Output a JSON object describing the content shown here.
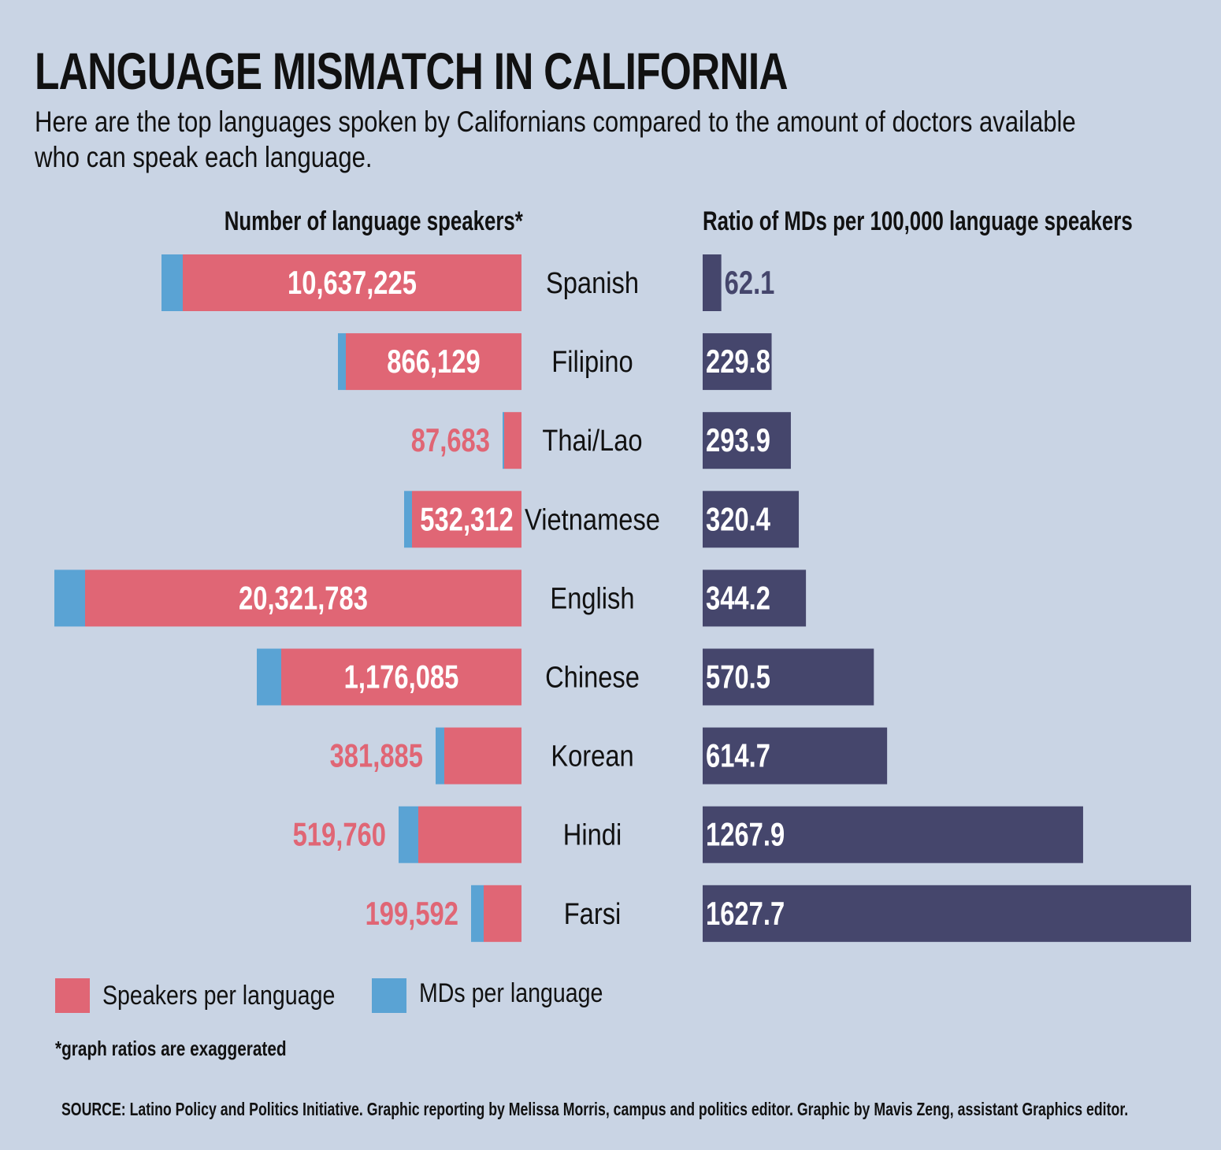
{
  "title": "LANGUAGE MISMATCH IN CALIFORNIA",
  "subtitle": "Here are the top languages spoken by Californians compared to the amount of doctors available who can speak each language.",
  "colors": {
    "background": "#c9d4e4",
    "speakers": "#e06675",
    "mds": "#5aa3d4",
    "ratio": "#45466c",
    "text": "#111111"
  },
  "chart_data": {
    "type": "bar",
    "left_title": "Number of language speakers*",
    "right_title": "Ratio of MDs per 100,000 language speakers",
    "categories": [
      "Spanish",
      "Filipino",
      "Thai/Lao",
      "Vietnamese",
      "English",
      "Chinese",
      "Korean",
      "Hindi",
      "Farsi"
    ],
    "series": [
      {
        "name": "Speakers per language",
        "values": [
          10637225,
          866129,
          87683,
          532312,
          20321783,
          1176085,
          381885,
          519760,
          199592
        ],
        "labels": [
          "10,637,225",
          "866,129",
          "87,683",
          "532,312",
          "20,321,783",
          "1,176,085",
          "381,885",
          "519,760",
          "199,592"
        ]
      },
      {
        "name": "Ratio of MDs per 100,000 language speakers",
        "values": [
          62.1,
          229.8,
          293.9,
          320.4,
          344.2,
          570.5,
          614.7,
          1267.9,
          1627.7
        ],
        "labels": [
          "62.1",
          "229.8",
          "293.9",
          "320.4",
          "344.2",
          "570.5",
          "614.7",
          "1267.9",
          "1627.7"
        ]
      }
    ],
    "left_bar_scale_units": [
      457,
      233,
      24,
      149,
      593,
      336,
      109,
      156,
      64
    ],
    "md_share_units": [
      27,
      10,
      2,
      10,
      39,
      31,
      11,
      25,
      16
    ],
    "right_xlim": [
      0,
      1627.7
    ],
    "legend": [
      "Speakers per language",
      "MDs per language"
    ],
    "footnote": "*graph ratios are exaggerated"
  },
  "source": "SOURCE: Latino Policy and Politics Initiative. Graphic reporting by Melissa Morris, campus and politics editor. Graphic by Mavis Zeng, assistant Graphics editor."
}
